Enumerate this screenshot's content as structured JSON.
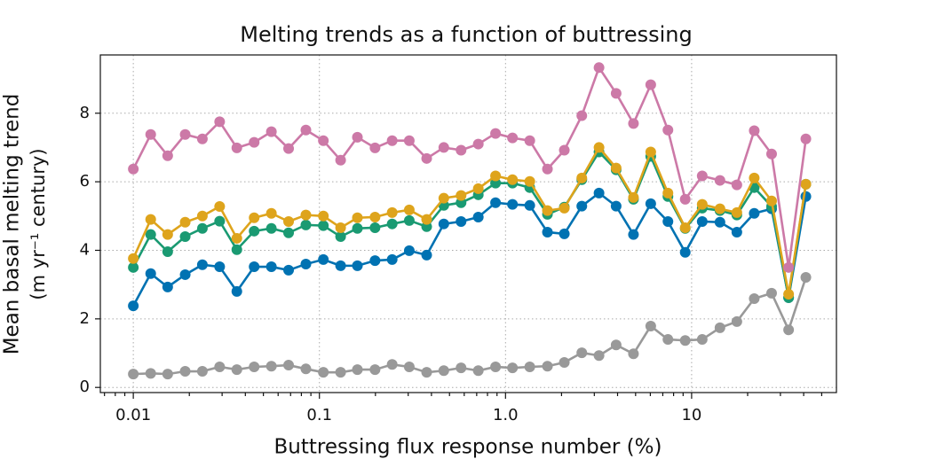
{
  "chart_data": {
    "type": "line",
    "title": "Melting trends as a function of buttressing",
    "xlabel": "Buttressing flux response number (%)",
    "ylabel": [
      "Mean basal melting trend",
      "(m yr⁻¹ century)"
    ],
    "xscale": "log",
    "x": [
      0.01,
      0.0124,
      0.0153,
      0.019,
      0.0235,
      0.0291,
      0.036,
      0.0446,
      0.0552,
      0.0683,
      0.0846,
      0.105,
      0.13,
      0.16,
      0.199,
      0.246,
      0.304,
      0.377,
      0.466,
      0.577,
      0.714,
      0.884,
      1.09,
      1.35,
      1.68,
      2.07,
      2.57,
      3.18,
      3.93,
      4.87,
      6.03,
      7.46,
      9.24,
      11.4,
      14.2,
      17.5,
      21.7,
      26.9,
      33.2,
      41.1
    ],
    "series": [
      {
        "color": "#999999",
        "values": [
          0.39,
          0.41,
          0.39,
          0.47,
          0.47,
          0.6,
          0.52,
          0.6,
          0.62,
          0.65,
          0.54,
          0.44,
          0.44,
          0.52,
          0.52,
          0.67,
          0.6,
          0.44,
          0.49,
          0.57,
          0.49,
          0.6,
          0.57,
          0.6,
          0.62,
          0.73,
          1.01,
          0.93,
          1.24,
          0.98,
          1.79,
          1.4,
          1.37,
          1.4,
          1.74,
          1.92,
          2.59,
          2.75,
          1.68,
          3.21
        ]
      },
      {
        "color": "#0072b2",
        "values": [
          2.38,
          3.32,
          2.93,
          3.29,
          3.58,
          3.52,
          2.8,
          3.52,
          3.52,
          3.42,
          3.6,
          3.73,
          3.55,
          3.55,
          3.7,
          3.73,
          3.99,
          3.86,
          4.77,
          4.84,
          4.97,
          5.39,
          5.34,
          5.31,
          4.53,
          4.48,
          5.29,
          5.67,
          5.29,
          4.46,
          5.36,
          4.84,
          3.94,
          4.84,
          4.82,
          4.53,
          5.08,
          5.21,
          2.62,
          5.57
        ]
      },
      {
        "color": "#1a9a72",
        "values": [
          3.5,
          4.46,
          3.96,
          4.4,
          4.64,
          4.85,
          4.02,
          4.56,
          4.64,
          4.51,
          4.74,
          4.72,
          4.4,
          4.64,
          4.66,
          4.77,
          4.87,
          4.69,
          5.31,
          5.39,
          5.62,
          5.96,
          5.96,
          5.83,
          5.05,
          5.26,
          6.06,
          6.87,
          6.35,
          5.49,
          6.74,
          5.57,
          4.64,
          5.23,
          5.16,
          5.03,
          5.83,
          5.28,
          2.62,
          5.93
        ]
      },
      {
        "color": "#dea41c",
        "values": [
          3.76,
          4.9,
          4.46,
          4.82,
          5.0,
          5.28,
          4.35,
          4.95,
          5.08,
          4.84,
          5.03,
          5.0,
          4.66,
          4.95,
          4.97,
          5.1,
          5.18,
          4.9,
          5.52,
          5.6,
          5.8,
          6.17,
          6.06,
          6.01,
          5.16,
          5.23,
          6.11,
          7.0,
          6.4,
          5.54,
          6.87,
          5.67,
          4.66,
          5.34,
          5.21,
          5.1,
          6.11,
          5.44,
          2.72,
          5.93
        ]
      },
      {
        "color": "#cc79a7",
        "values": [
          6.37,
          7.38,
          6.76,
          7.38,
          7.25,
          7.75,
          6.99,
          7.15,
          7.46,
          6.97,
          7.51,
          7.2,
          6.63,
          7.3,
          6.99,
          7.2,
          7.2,
          6.68,
          7.0,
          6.92,
          7.1,
          7.41,
          7.28,
          7.2,
          6.37,
          6.92,
          7.93,
          9.33,
          8.58,
          7.7,
          8.83,
          7.51,
          5.49,
          6.17,
          6.04,
          5.91,
          7.49,
          6.81,
          3.5,
          7.25
        ]
      }
    ],
    "xlim": [
      0.00665,
      60
    ],
    "ylim": [
      -0.15,
      9.7
    ],
    "xticks": [
      0.01,
      0.1,
      {
        "value": 1,
        "label": "1.0"
      },
      10
    ],
    "yticks": [
      0,
      2,
      4,
      6,
      8
    ],
    "grid": true
  }
}
